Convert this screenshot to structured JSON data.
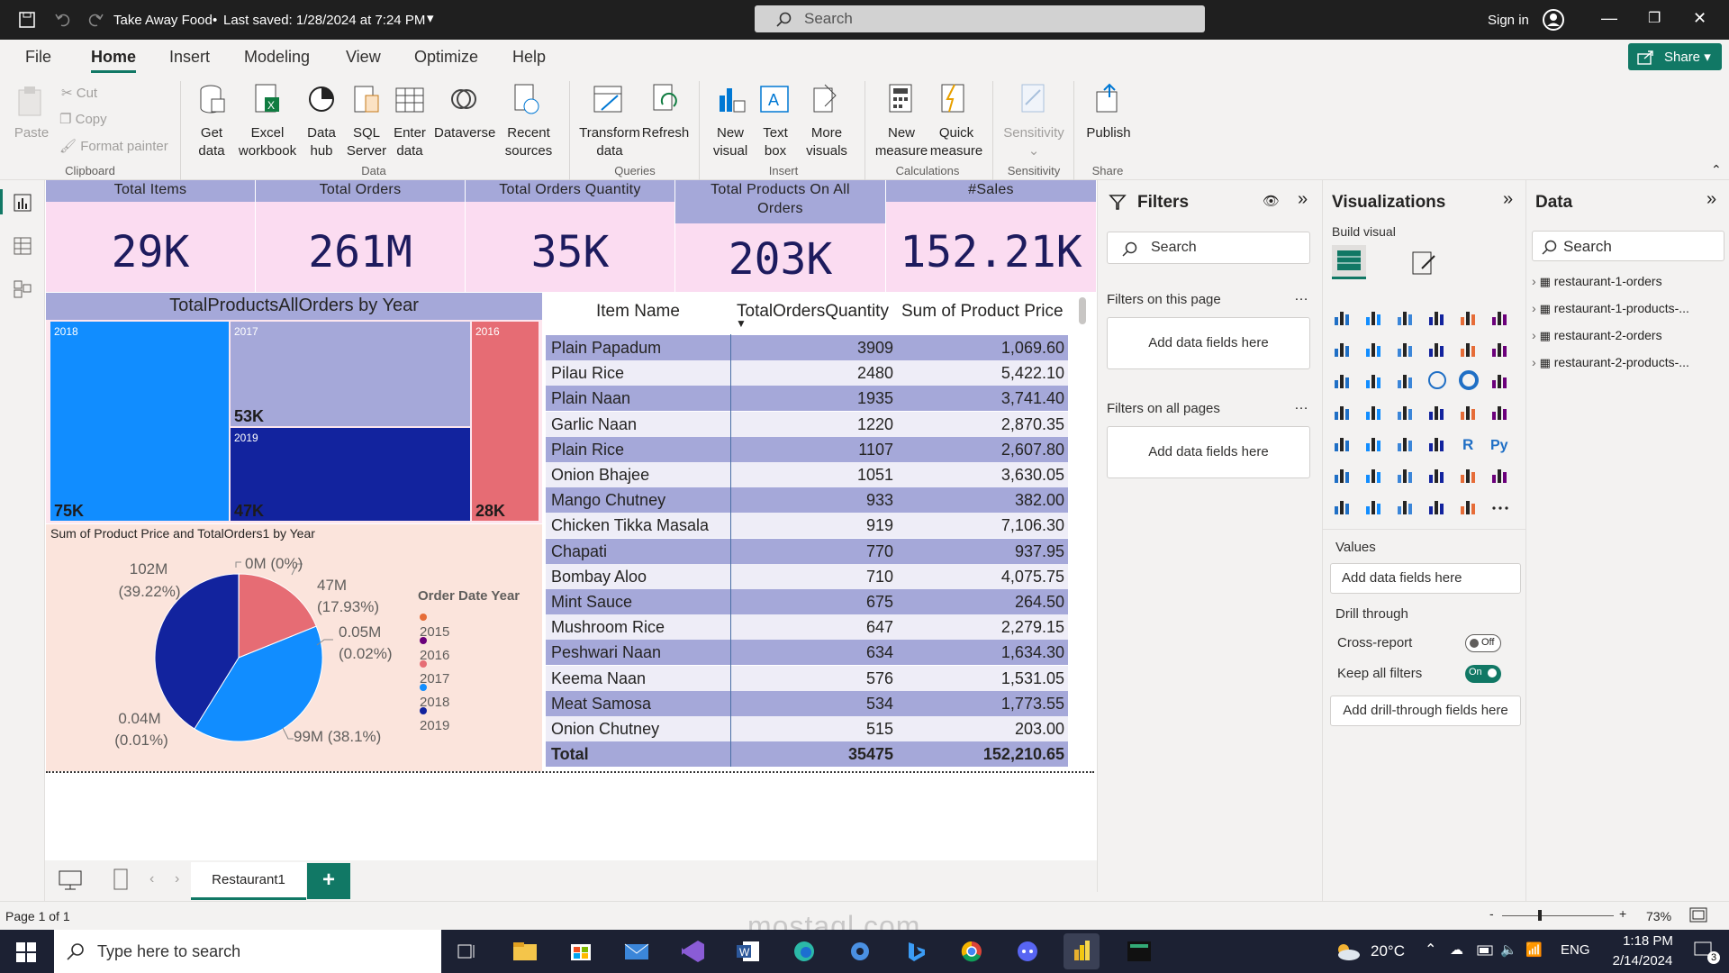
{
  "titlebar": {
    "file_title": "Take Away Food",
    "saved": "Last saved: 1/28/2024 at 7:24 PM",
    "search_placeholder": "Search",
    "signin": "Sign in"
  },
  "menu": {
    "items": [
      "File",
      "Home",
      "Insert",
      "Modeling",
      "View",
      "Optimize",
      "Help"
    ],
    "active": "Home",
    "share": "Share"
  },
  "ribbon": {
    "clipboard": {
      "paste": "Paste",
      "cut": "Cut",
      "copy": "Copy",
      "format_painter": "Format painter",
      "group": "Clipboard"
    },
    "data": {
      "get_data": "Get data",
      "excel": "Excel workbook",
      "data_hub": "Data hub",
      "sql": "SQL Server",
      "enter": "Enter data",
      "dataverse": "Dataverse",
      "recent": "Recent sources",
      "group": "Data"
    },
    "queries": {
      "transform": "Transform data",
      "refresh": "Refresh",
      "group": "Queries"
    },
    "insert": {
      "new_visual": "New visual",
      "text_box": "Text box",
      "more_visuals": "More visuals",
      "group": "Insert"
    },
    "calculations": {
      "new_measure": "New measure",
      "quick_measure": "Quick measure",
      "group": "Calculations"
    },
    "sensitivity": {
      "label": "Sensitivity",
      "group": "Sensitivity"
    },
    "share": {
      "publish": "Publish",
      "group": "Share"
    }
  },
  "kpis": [
    {
      "title": "Total Items",
      "value": "29K"
    },
    {
      "title": "Total Orders",
      "value": "261M"
    },
    {
      "title": "Total Orders Quantity",
      "value": "35K"
    },
    {
      "title": "Total Products On All Orders",
      "value": "203K"
    },
    {
      "title": "#Sales",
      "value": "152.21K"
    }
  ],
  "treemap": {
    "title": "TotalProductsAllOrders by Year",
    "cells": [
      {
        "year": "2018",
        "value": "75K",
        "color": "#118dff"
      },
      {
        "year": "2017",
        "value": "53K",
        "color": "#a5a8d9"
      },
      {
        "year": "2019",
        "value": "47K",
        "color": "#12239e"
      },
      {
        "year": "2016",
        "value": "28K",
        "color": "#e66c74"
      }
    ]
  },
  "pie": {
    "title": "Sum of Product Price and TotalOrders1 by Year",
    "legend_title": "Order Date Year",
    "labels": [
      "102M",
      "(39.22%)",
      "0M (0%)",
      "47M",
      "(17.93%)",
      "0.05M",
      "(0.02%)",
      "0.04M",
      "(0.01%)",
      "99M (38.1%)"
    ]
  },
  "chart_data": {
    "type": "pie",
    "title": "Sum of Product Price and TotalOrders1 by Year",
    "legend_title": "Order Date Year",
    "categories": [
      "2015",
      "2016",
      "2017",
      "2018",
      "2019"
    ],
    "values_pct": [
      0.01,
      0.02,
      17.93,
      38.1,
      39.22
    ],
    "colors": [
      "#e66c37",
      "#6b007b",
      "#e66c74",
      "#118dff",
      "#12239e"
    ]
  },
  "table": {
    "headers": [
      "Item Name",
      "TotalOrdersQuantity",
      "Sum of Product Price"
    ],
    "rows": [
      [
        "Plain Papadum",
        "3909",
        "1,069.60"
      ],
      [
        "Pilau Rice",
        "2480",
        "5,422.10"
      ],
      [
        "Plain Naan",
        "1935",
        "3,741.40"
      ],
      [
        "Garlic Naan",
        "1220",
        "2,870.35"
      ],
      [
        "Plain Rice",
        "1107",
        "2,607.80"
      ],
      [
        "Onion Bhajee",
        "1051",
        "3,630.05"
      ],
      [
        "Mango Chutney",
        "933",
        "382.00"
      ],
      [
        "Chicken Tikka Masala",
        "919",
        "7,106.30"
      ],
      [
        "Chapati",
        "770",
        "937.95"
      ],
      [
        "Bombay Aloo",
        "710",
        "4,075.75"
      ],
      [
        "Mint Sauce",
        "675",
        "264.50"
      ],
      [
        "Mushroom Rice",
        "647",
        "2,279.15"
      ],
      [
        "Peshwari Naan",
        "634",
        "1,634.30"
      ],
      [
        "Keema Naan",
        "576",
        "1,531.05"
      ],
      [
        "Meat Samosa",
        "534",
        "1,773.55"
      ],
      [
        "Onion Chutney",
        "515",
        "203.00"
      ]
    ],
    "total": [
      "Total",
      "35475",
      "152,210.65"
    ]
  },
  "filters": {
    "title": "Filters",
    "search": "Search",
    "on_page": "Filters on this page",
    "on_all": "Filters on all pages",
    "add": "Add data fields here"
  },
  "viz": {
    "title": "Visualizations",
    "build": "Build visual",
    "values": "Values",
    "add_values": "Add data fields here",
    "drill": "Drill through",
    "cross": "Cross-report",
    "cross_state": "Off",
    "keep": "Keep all filters",
    "keep_state": "On",
    "add_drill": "Add drill-through fields here"
  },
  "datapane": {
    "title": "Data",
    "search": "Search",
    "tables": [
      "restaurant-1-orders",
      "restaurant-1-products-...",
      "restaurant-2-orders",
      "restaurant-2-products-..."
    ]
  },
  "pages": {
    "tab": "Restaurant1",
    "add": "+"
  },
  "status": {
    "page": "Page 1 of 1",
    "zoom": "73%"
  },
  "taskbar": {
    "search": "Type here to search",
    "temp": "20°C",
    "lang": "ENG",
    "time": "1:18 PM",
    "date": "2/14/2024",
    "notif": "3"
  },
  "watermark": {
    "text": "mostaql.com"
  }
}
